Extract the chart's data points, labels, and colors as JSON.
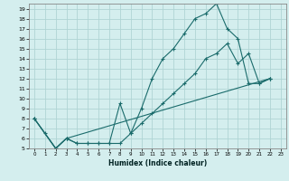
{
  "xlabel": "Humidex (Indice chaleur)",
  "bg_color": "#d4eeee",
  "grid_color": "#b0d4d4",
  "line_color": "#1a6b6b",
  "spine_color": "#888888",
  "xlim": [
    -0.5,
    23.5
  ],
  "ylim": [
    5,
    19.5
  ],
  "xticks": [
    0,
    1,
    2,
    3,
    4,
    5,
    6,
    7,
    8,
    9,
    10,
    11,
    12,
    13,
    14,
    15,
    16,
    17,
    18,
    19,
    20,
    21,
    22,
    23
  ],
  "yticks": [
    5,
    6,
    7,
    8,
    9,
    10,
    11,
    12,
    13,
    14,
    15,
    16,
    17,
    18,
    19
  ],
  "curve1_x": [
    0,
    1,
    2,
    3,
    4,
    5,
    6,
    7,
    8,
    9,
    10,
    11,
    12,
    13,
    14,
    15,
    16,
    17,
    18,
    19,
    20,
    21,
    22
  ],
  "curve1_y": [
    8,
    6.5,
    5,
    6,
    5.5,
    5.5,
    5.5,
    5.5,
    9.5,
    6.5,
    9,
    12,
    14,
    15,
    16.5,
    18,
    18.5,
    19.5,
    17,
    16,
    11.5,
    11.5,
    12
  ],
  "curve2_x": [
    0,
    2,
    3,
    4,
    5,
    6,
    7,
    8,
    9,
    10,
    11,
    12,
    13,
    14,
    15,
    16,
    17,
    18,
    19,
    20,
    21,
    22
  ],
  "curve2_y": [
    8,
    5,
    6,
    5.5,
    5.5,
    5.5,
    5.5,
    5.5,
    6.5,
    7.5,
    8.5,
    9.5,
    10.5,
    11.5,
    12.5,
    14,
    14.5,
    15.5,
    13.5,
    14.5,
    11.5,
    12
  ],
  "curve3_x": [
    0,
    2,
    3,
    22
  ],
  "curve3_y": [
    8,
    5,
    6,
    12
  ]
}
